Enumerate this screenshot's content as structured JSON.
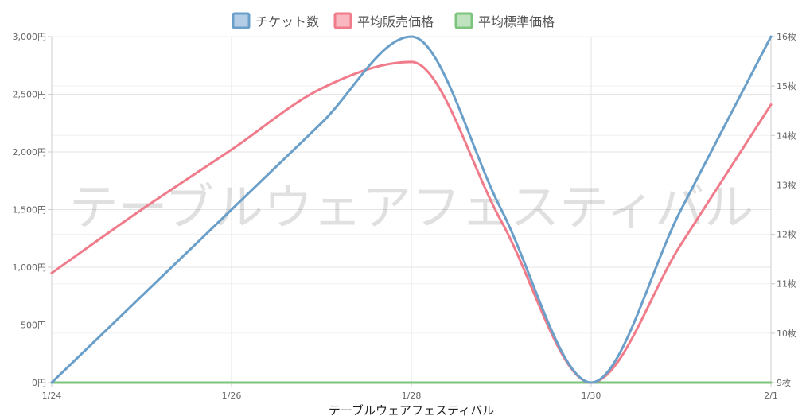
{
  "chart_data": {
    "type": "line",
    "title": "",
    "watermark": "テーブルウェアフェスティバル",
    "xlabel": "テーブルウェアフェスティバル",
    "x": [
      "1/24",
      "1/25",
      "1/26",
      "1/27",
      "1/28",
      "1/29",
      "1/30",
      "1/31",
      "2/1"
    ],
    "x_tick_labels": [
      "1/24",
      "1/26",
      "1/28",
      "1/30",
      "2/1"
    ],
    "y_left": {
      "ylim": [
        0,
        3000
      ],
      "ticks": [
        0,
        500,
        1000,
        1500,
        2000,
        2500,
        3000
      ],
      "tick_labels": [
        "0円",
        "500円",
        "1,000円",
        "1,500円",
        "2,000円",
        "2,500円",
        "3,000円"
      ]
    },
    "y_right": {
      "ylim": [
        9,
        16
      ],
      "ticks": [
        9,
        10,
        11,
        12,
        13,
        14,
        15,
        16
      ],
      "tick_labels": [
        "9枚",
        "10枚",
        "11枚",
        "12枚",
        "13枚",
        "14枚",
        "15枚",
        "16枚"
      ]
    },
    "series": [
      {
        "name": "チケット数",
        "axis": "right",
        "color": "#6a9fc9",
        "fill": "#b4cde6",
        "values": [
          9,
          10.75,
          12.5,
          14.25,
          16,
          12.5,
          9,
          12.5,
          16
        ]
      },
      {
        "name": "平均販売価格",
        "axis": "left",
        "color": "#f07b8a",
        "fill": "#f9b7bf",
        "values": [
          950,
          1500,
          2020,
          2550,
          2780,
          1400,
          0,
          1200,
          2410
        ]
      },
      {
        "name": "平均標準価格",
        "axis": "left",
        "color": "#7dc47d",
        "fill": "#bfe3bf",
        "values": [
          0,
          0,
          0,
          0,
          0,
          0,
          0,
          0,
          0
        ]
      }
    ],
    "grid": true,
    "legend_position": "top-center"
  }
}
